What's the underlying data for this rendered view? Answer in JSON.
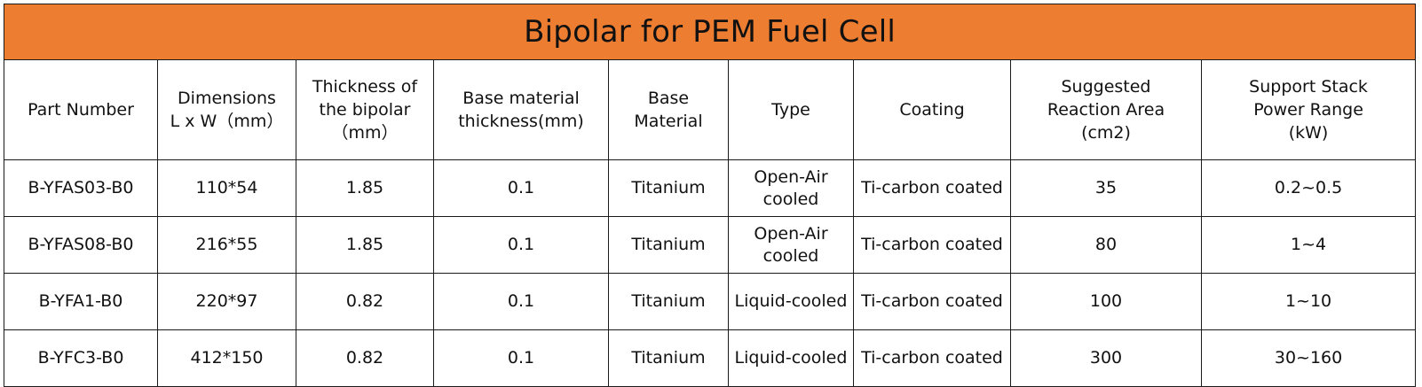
{
  "table": {
    "title": "Bipolar  for PEM Fuel Cell",
    "title_bg_color": "#ed7d31",
    "headers": [
      "Part Number",
      "Dimensions\nL x W（mm）",
      "Thickness of\nthe bipolar\n（mm）",
      "Base material\nthickness(mm)",
      "Base\nMaterial",
      "Type",
      "Coating",
      "Suggested\nReaction Area\n(cm2)",
      "Support Stack\nPower Range\n(kW)"
    ],
    "rows": [
      [
        "B-YFAS03-B0",
        "110*54",
        "1.85",
        "0.1",
        "Titanium",
        "Open-Air\ncooled",
        "Ti-carbon coated",
        "35",
        "0.2~0.5"
      ],
      [
        "B-YFAS08-B0",
        "216*55",
        "1.85",
        "0.1",
        "Titanium",
        "Open-Air\ncooled",
        "Ti-carbon coated",
        "80",
        "1~4"
      ],
      [
        "B-YFA1-B0",
        "220*97",
        "0.82",
        "0.1",
        "Titanium",
        "Liquid-cooled",
        "Ti-carbon coated",
        "100",
        "1~10"
      ],
      [
        "B-YFC3-B0",
        "412*150",
        "0.82",
        "0.1",
        "Titanium",
        "Liquid-cooled",
        "Ti-carbon coated",
        "300",
        "30~160"
      ]
    ]
  }
}
